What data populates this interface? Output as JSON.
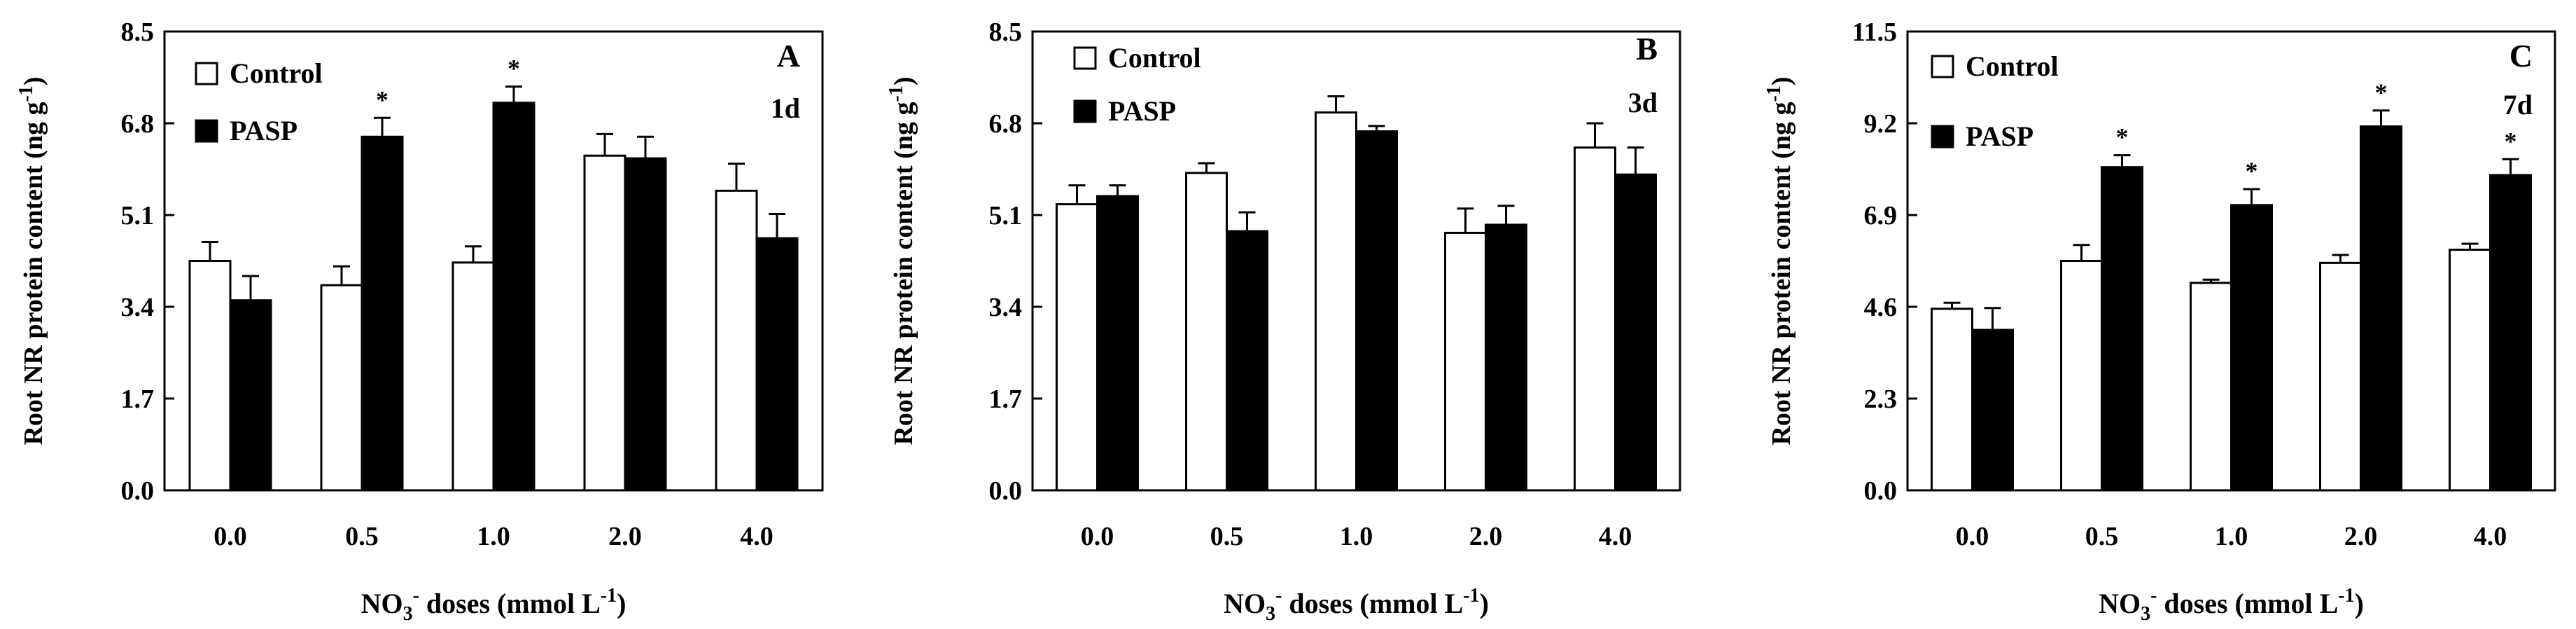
{
  "figure": {
    "colors": {
      "control_fill": "#ffffff",
      "pasp_fill": "#000000",
      "axis": "#000000"
    }
  },
  "chart_data": [
    {
      "type": "bar",
      "panel_label": "A",
      "duration": "1d",
      "title": "",
      "ylabel": "Root NR protein content (ng g-1)",
      "ylabel_main": "Root NR protein content (ng g",
      "ylabel_sup": "-1",
      "ylabel_end": ")",
      "xlabel": "NO3- doses (mmol L-1)",
      "ylim": [
        0,
        8.5
      ],
      "yticks": [
        "0.0",
        "1.7",
        "3.4",
        "5.1",
        "6.8",
        "8.5"
      ],
      "categories": [
        "0.0",
        "0.5",
        "1.0",
        "2.0",
        "4.0"
      ],
      "legend": [
        "Control",
        "PASP"
      ],
      "series": [
        {
          "name": "Control",
          "values": [
            4.25,
            3.8,
            4.22,
            6.2,
            5.55
          ],
          "errors": [
            0.35,
            0.35,
            0.3,
            0.4,
            0.5
          ]
        },
        {
          "name": "PASP",
          "values": [
            3.52,
            6.55,
            7.18,
            6.15,
            4.67
          ],
          "errors": [
            0.45,
            0.35,
            0.3,
            0.4,
            0.45
          ]
        }
      ],
      "significance": [
        {
          "category": "0.5",
          "series": "PASP",
          "label": "*"
        },
        {
          "category": "1.0",
          "series": "PASP",
          "label": "*"
        }
      ]
    },
    {
      "type": "bar",
      "panel_label": "B",
      "duration": "3d",
      "title": "",
      "ylabel": "Root NR protein content (ng g-1)",
      "ylabel_main": "Root NR protein content (ng g",
      "ylabel_sup": "-1",
      "ylabel_end": ")",
      "xlabel": "NO3- doses (mmol L-1)",
      "ylim": [
        0,
        8.5
      ],
      "yticks": [
        "0.0",
        "1.7",
        "3.4",
        "5.1",
        "6.8",
        "8.5"
      ],
      "categories": [
        "0.0",
        "0.5",
        "1.0",
        "2.0",
        "4.0"
      ],
      "legend": [
        "Control",
        "PASP"
      ],
      "series": [
        {
          "name": "Control",
          "values": [
            5.3,
            5.88,
            7.0,
            4.77,
            6.35
          ],
          "errors": [
            0.35,
            0.18,
            0.3,
            0.45,
            0.45
          ]
        },
        {
          "name": "PASP",
          "values": [
            5.45,
            4.8,
            6.65,
            4.92,
            5.85
          ],
          "errors": [
            0.2,
            0.35,
            0.1,
            0.35,
            0.5
          ]
        }
      ],
      "significance": []
    },
    {
      "type": "bar",
      "panel_label": "C",
      "duration": "7d",
      "title": "",
      "ylabel": "Root NR protein content (ng g-1)",
      "ylabel_main": "Root NR protein content (ng g",
      "ylabel_sup": "-1",
      "ylabel_end": ")",
      "xlabel": "NO3- doses (mmol L-1)",
      "ylim": [
        0,
        11.5
      ],
      "yticks": [
        "0.0",
        "2.3",
        "4.6",
        "6.9",
        "9.2",
        "11.5"
      ],
      "categories": [
        "0.0",
        "0.5",
        "1.0",
        "2.0",
        "4.0"
      ],
      "legend": [
        "Control",
        "PASP"
      ],
      "series": [
        {
          "name": "Control",
          "values": [
            4.55,
            5.75,
            5.2,
            5.7,
            6.03
          ],
          "errors": [
            0.15,
            0.4,
            0.08,
            0.2,
            0.15
          ]
        },
        {
          "name": "PASP",
          "values": [
            4.02,
            8.1,
            7.15,
            9.12,
            7.9
          ],
          "errors": [
            0.55,
            0.3,
            0.4,
            0.4,
            0.4
          ]
        }
      ],
      "significance": [
        {
          "category": "0.5",
          "series": "PASP",
          "label": "*"
        },
        {
          "category": "1.0",
          "series": "PASP",
          "label": "*"
        },
        {
          "category": "2.0",
          "series": "PASP",
          "label": "*"
        },
        {
          "category": "4.0",
          "series": "PASP",
          "label": "*"
        }
      ]
    }
  ]
}
